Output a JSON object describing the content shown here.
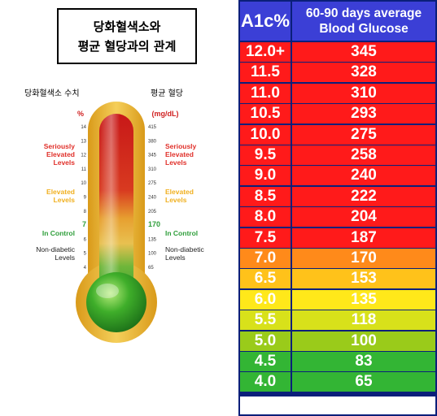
{
  "title": {
    "line1": "당화혈색소와",
    "line2": "평균 혈당과의 관계"
  },
  "thermometer": {
    "left_header": "당화혈색소 수치",
    "right_header": "평균 혈당",
    "left_unit": "%",
    "right_unit": "(mg/dL)",
    "left_ticks": [
      "14",
      "13",
      "12",
      "11",
      "10",
      "9",
      "8",
      "7",
      "6",
      "5",
      "4"
    ],
    "right_ticks": [
      "415",
      "380",
      "345",
      "310",
      "275",
      "240",
      "205",
      "170",
      "135",
      "100",
      "65"
    ],
    "zones": [
      {
        "left_lines": [
          "Seriously",
          "Elevated",
          "Levels"
        ],
        "right_lines": [
          "Seriously",
          "Elevated",
          "Levels"
        ],
        "color": "#e0302a"
      },
      {
        "left_lines": [
          "Elevated",
          "Levels"
        ],
        "right_lines": [
          "Elevated",
          "Levels"
        ],
        "color": "#f0b020"
      },
      {
        "left_lines": [
          "In Control"
        ],
        "right_lines": [
          "In Control"
        ],
        "color": "#2e9e3a"
      },
      {
        "left_lines": [
          "Non-diabetic",
          "Levels"
        ],
        "right_lines": [
          "Non-diabetic",
          "Levels"
        ],
        "color": "#222222"
      }
    ]
  },
  "table": {
    "header_a1c": "A1c%",
    "header_avg_line1": "60-90 days average",
    "header_avg_line2": "Blood Glucose",
    "rows": [
      {
        "a1c": "12.0+",
        "glucose": "345",
        "color": "#ff1a1a"
      },
      {
        "a1c": "11.5",
        "glucose": "328",
        "color": "#ff1a1a"
      },
      {
        "a1c": "11.0",
        "glucose": "310",
        "color": "#ff1a1a"
      },
      {
        "a1c": "10.5",
        "glucose": "293",
        "color": "#ff1a1a"
      },
      {
        "a1c": "10.0",
        "glucose": "275",
        "color": "#ff1a1a"
      },
      {
        "a1c": "9.5",
        "glucose": "258",
        "color": "#ff1a1a"
      },
      {
        "a1c": "9.0",
        "glucose": "240",
        "color": "#ff1a1a"
      },
      {
        "a1c": "8.5",
        "glucose": "222",
        "color": "#ff1a1a"
      },
      {
        "a1c": "8.0",
        "glucose": "204",
        "color": "#ff1a1a"
      },
      {
        "a1c": "7.5",
        "glucose": "187",
        "color": "#ff1a1a"
      },
      {
        "a1c": "7.0",
        "glucose": "170",
        "color": "#ff8a1a"
      },
      {
        "a1c": "6.5",
        "glucose": "153",
        "color": "#ffc21a"
      },
      {
        "a1c": "6.0",
        "glucose": "135",
        "color": "#ffe81a"
      },
      {
        "a1c": "5.5",
        "glucose": "118",
        "color": "#d8e11a"
      },
      {
        "a1c": "5.0",
        "glucose": "100",
        "color": "#9acb1a"
      },
      {
        "a1c": "4.5",
        "glucose": "83",
        "color": "#33b534"
      },
      {
        "a1c": "4.0",
        "glucose": "65",
        "color": "#33b534"
      }
    ]
  },
  "chart_data": {
    "type": "table",
    "columns": [
      "A1c%",
      "60-90 days average Blood Glucose"
    ],
    "categories": [
      "12.0+",
      "11.5",
      "11.0",
      "10.5",
      "10.0",
      "9.5",
      "9.0",
      "8.5",
      "8.0",
      "7.5",
      "7.0",
      "6.5",
      "6.0",
      "5.5",
      "5.0",
      "4.5",
      "4.0"
    ],
    "values": [
      345,
      328,
      310,
      293,
      275,
      258,
      240,
      222,
      204,
      187,
      170,
      153,
      135,
      118,
      100,
      83,
      65
    ]
  }
}
